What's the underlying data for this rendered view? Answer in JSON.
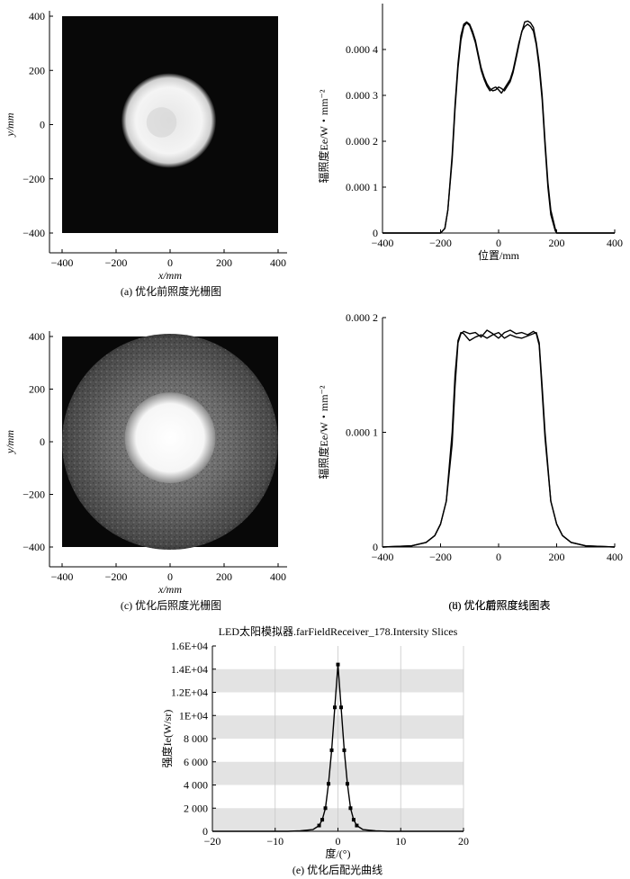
{
  "chart_data": [
    {
      "type": "heatmap",
      "caption": "(a) 优化前照度光栅图",
      "xlabel": "x/mm",
      "ylabel": "y/mm",
      "xlim": [
        -400,
        400
      ],
      "ylim": [
        -400,
        400
      ],
      "xticks": [
        "−400",
        "−200",
        "0",
        "200",
        "400"
      ],
      "yticks": [
        "400",
        "200",
        "0",
        "−200",
        "−400"
      ],
      "spot": {
        "center": [
          -5,
          15
        ],
        "radius_mm": 175,
        "peak": 1.0,
        "background": 0.0
      }
    },
    {
      "type": "line",
      "caption": "(b) 优化前照度线图表",
      "xlabel": "位置/mm",
      "ylabel": "辐照度Ee/W・mm⁻²",
      "xlim": [
        -400,
        400
      ],
      "ylim": [
        0,
        0.0005
      ],
      "xticks": [
        "−400",
        "−200",
        "0",
        "200",
        "400"
      ],
      "yticks": [
        "0",
        "0.000 1",
        "0.000 2",
        "0.000 3",
        "0.000 4"
      ],
      "series": [
        {
          "x": [
            -400,
            -200,
            -185,
            -175,
            -160,
            -150,
            -140,
            -130,
            -120,
            -110,
            -100,
            -90,
            -80,
            -70,
            -60,
            -50,
            -40,
            -30,
            -20,
            -10,
            0,
            10,
            20,
            30,
            40,
            50,
            60,
            70,
            80,
            90,
            100,
            110,
            120,
            130,
            140,
            150,
            160,
            170,
            180,
            195,
            200,
            400
          ],
          "values": [
            0,
            0,
            1e-05,
            5e-05,
            0.00017,
            0.00028,
            0.00037,
            0.00043,
            0.000455,
            0.00046,
            0.000455,
            0.00044,
            0.00042,
            0.00039,
            0.00036,
            0.00034,
            0.000325,
            0.000315,
            0.00031,
            0.000312,
            0.000318,
            0.000315,
            0.00031,
            0.00032,
            0.00033,
            0.00035,
            0.00038,
            0.00041,
            0.00044,
            0.00045,
            0.000455,
            0.00045,
            0.00044,
            0.00041,
            0.00036,
            0.00029,
            0.00019,
            0.0001,
            4e-05,
            5e-06,
            0,
            0
          ]
        },
        {
          "x": [
            -400,
            -200,
            -185,
            -175,
            -160,
            -150,
            -140,
            -130,
            -120,
            -110,
            -100,
            -90,
            -80,
            -70,
            -60,
            -50,
            -40,
            -30,
            -20,
            -10,
            0,
            10,
            20,
            30,
            40,
            50,
            60,
            70,
            80,
            90,
            100,
            110,
            120,
            130,
            140,
            150,
            160,
            170,
            180,
            195,
            200,
            400
          ],
          "values": [
            0,
            0,
            1e-05,
            5e-05,
            0.00016,
            0.00027,
            0.00036,
            0.00042,
            0.00045,
            0.000458,
            0.000452,
            0.000435,
            0.000415,
            0.000385,
            0.000355,
            0.000335,
            0.00032,
            0.00031,
            0.000315,
            0.000318,
            0.000312,
            0.000305,
            0.000315,
            0.000325,
            0.000335,
            0.000355,
            0.000385,
            0.000415,
            0.000438,
            0.00046,
            0.000462,
            0.000458,
            0.000448,
            0.000415,
            0.00037,
            0.0003,
            0.0002,
            0.00011,
            5e-05,
            1e-05,
            0,
            0
          ]
        }
      ]
    },
    {
      "type": "heatmap",
      "caption": "(c) 优化后照度光栅图",
      "xlabel": "x/mm",
      "ylabel": "y/mm",
      "xlim": [
        -400,
        400
      ],
      "ylim": [
        -400,
        400
      ],
      "xticks": [
        "−400",
        "−200",
        "0",
        "200",
        "400"
      ],
      "yticks": [
        "400",
        "200",
        "0",
        "−200",
        "−400"
      ],
      "spot": {
        "center": [
          0,
          15
        ],
        "radius_mm": 150,
        "peak": 1.0,
        "halo_radius_mm": 400,
        "background": 0.3
      }
    },
    {
      "type": "line",
      "caption": "(d) 优化后照度线图表",
      "xlabel": "",
      "ylabel": "辐照度Ee/W・mm⁻²",
      "xlim": [
        -400,
        400
      ],
      "ylim": [
        0,
        0.0002
      ],
      "xticks": [
        "−400",
        "−200",
        "0",
        "200",
        "400"
      ],
      "yticks": [
        "0",
        "0.000 1",
        "0.000 2"
      ],
      "series": [
        {
          "x": [
            -400,
            -300,
            -250,
            -220,
            -200,
            -180,
            -160,
            -150,
            -140,
            -130,
            -120,
            -100,
            -80,
            -60,
            -40,
            -20,
            0,
            20,
            40,
            60,
            80,
            100,
            120,
            130,
            140,
            150,
            160,
            180,
            200,
            220,
            250,
            300,
            400
          ],
          "values": [
            0,
            1e-06,
            4e-06,
            1e-05,
            2e-05,
            4e-05,
            0.0001,
            0.00015,
            0.00018,
            0.000187,
            0.000186,
            0.00018,
            0.000183,
            0.000185,
            0.000182,
            0.000185,
            0.000187,
            0.000182,
            0.000185,
            0.000183,
            0.000182,
            0.000184,
            0.000186,
            0.000187,
            0.000178,
            0.00014,
            0.0001,
            4e-05,
            2e-05,
            1e-05,
            4e-06,
            1e-06,
            0
          ]
        },
        {
          "x": [
            -400,
            -300,
            -250,
            -220,
            -200,
            -180,
            -160,
            -150,
            -140,
            -130,
            -120,
            -100,
            -80,
            -60,
            -40,
            -20,
            0,
            20,
            40,
            60,
            80,
            100,
            120,
            130,
            140,
            150,
            160,
            180,
            200,
            220,
            250,
            300,
            400
          ],
          "values": [
            0,
            1e-06,
            4e-06,
            1e-05,
            2e-05,
            4e-05,
            9e-05,
            0.00014,
            0.000178,
            0.000186,
            0.000188,
            0.000186,
            0.000187,
            0.000183,
            0.000189,
            0.000186,
            0.000182,
            0.000187,
            0.000189,
            0.000186,
            0.000187,
            0.000185,
            0.000188,
            0.000186,
            0.000176,
            0.000135,
            9.5e-05,
            4e-05,
            2e-05,
            1e-05,
            4e-06,
            1e-06,
            0
          ]
        }
      ]
    },
    {
      "type": "line",
      "title": "LED太阳模拟器.farFieldReceiver_178.Intersity Slices",
      "caption": "(e) 优化后配光曲线",
      "xlabel": "度/(°)",
      "ylabel": "强度Ie(W/sr)",
      "xlim": [
        -20,
        20
      ],
      "ylim": [
        0,
        16000
      ],
      "grid": true,
      "xticks": [
        "−20",
        "−10",
        "0",
        "10",
        "20"
      ],
      "yticks": [
        "0",
        "2 000",
        "4 000",
        "6 000",
        "8 000",
        "1E+04",
        "1.2E+04",
        "1.4E+04",
        "1.6E+04"
      ],
      "series": [
        {
          "x": [
            -20,
            -8,
            -6,
            -4,
            -3,
            -2.5,
            -2,
            -1.5,
            -1,
            -0.5,
            0,
            0.5,
            1,
            1.5,
            2,
            2.5,
            3,
            4,
            6,
            8,
            20
          ],
          "values": [
            0,
            0,
            40,
            150,
            500,
            1000,
            2000,
            4100,
            7000,
            10700,
            14400,
            10700,
            7000,
            4100,
            2000,
            1000,
            500,
            150,
            40,
            0,
            0
          ]
        }
      ],
      "markers_x": [
        -3,
        -2.5,
        -2,
        -1.5,
        -1,
        -0.5,
        0,
        0.5,
        1,
        1.5,
        2,
        2.5,
        3
      ]
    }
  ]
}
